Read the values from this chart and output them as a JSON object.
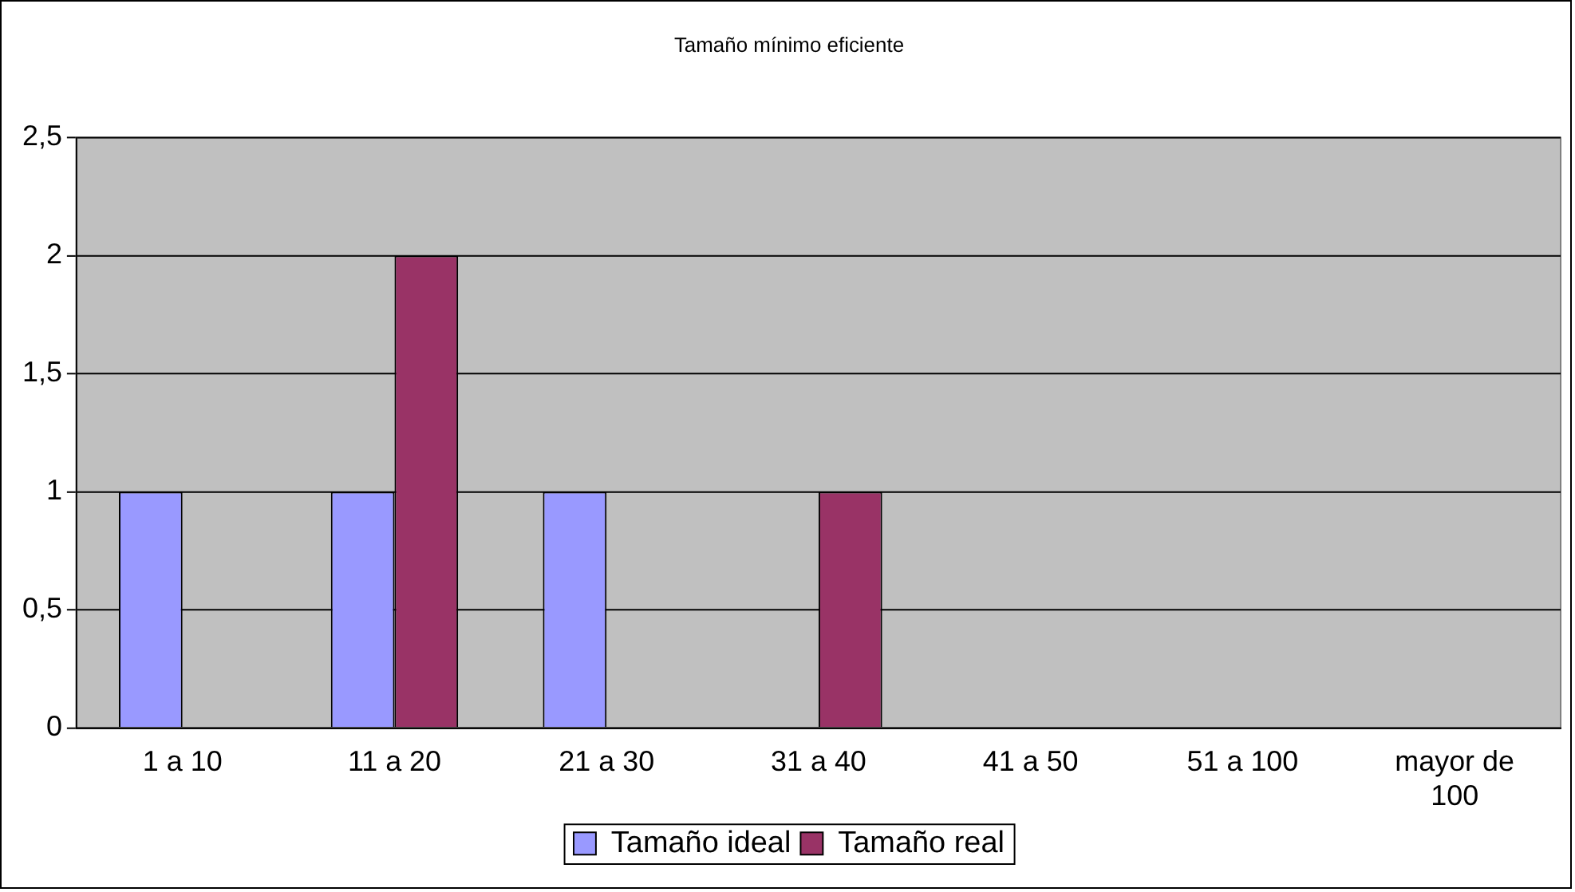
{
  "chart_data": {
    "type": "bar",
    "title": "Tamaño mínimo eficiente",
    "categories": [
      "1 a 10",
      "11 a 20",
      "21 a 30",
      "31 a 40",
      "41 a 50",
      "51 a 100",
      "mayor de 100"
    ],
    "series": [
      {
        "name": "Tamaño ideal",
        "color": "#9999ff",
        "values": [
          1,
          1,
          1,
          0,
          0,
          0,
          0
        ]
      },
      {
        "name": "Tamaño real",
        "color": "#993366",
        "values": [
          0,
          2,
          0,
          1,
          0,
          0,
          0
        ]
      }
    ],
    "ylim": [
      0,
      2.5
    ],
    "yticks": [
      0,
      {
        "value": 0.5,
        "label": "0,5"
      },
      1,
      {
        "value": 1.5,
        "label": "1,5"
      },
      2,
      {
        "value": 2.5,
        "label": "2,5"
      }
    ],
    "grid": "y",
    "legend": "bottom"
  }
}
